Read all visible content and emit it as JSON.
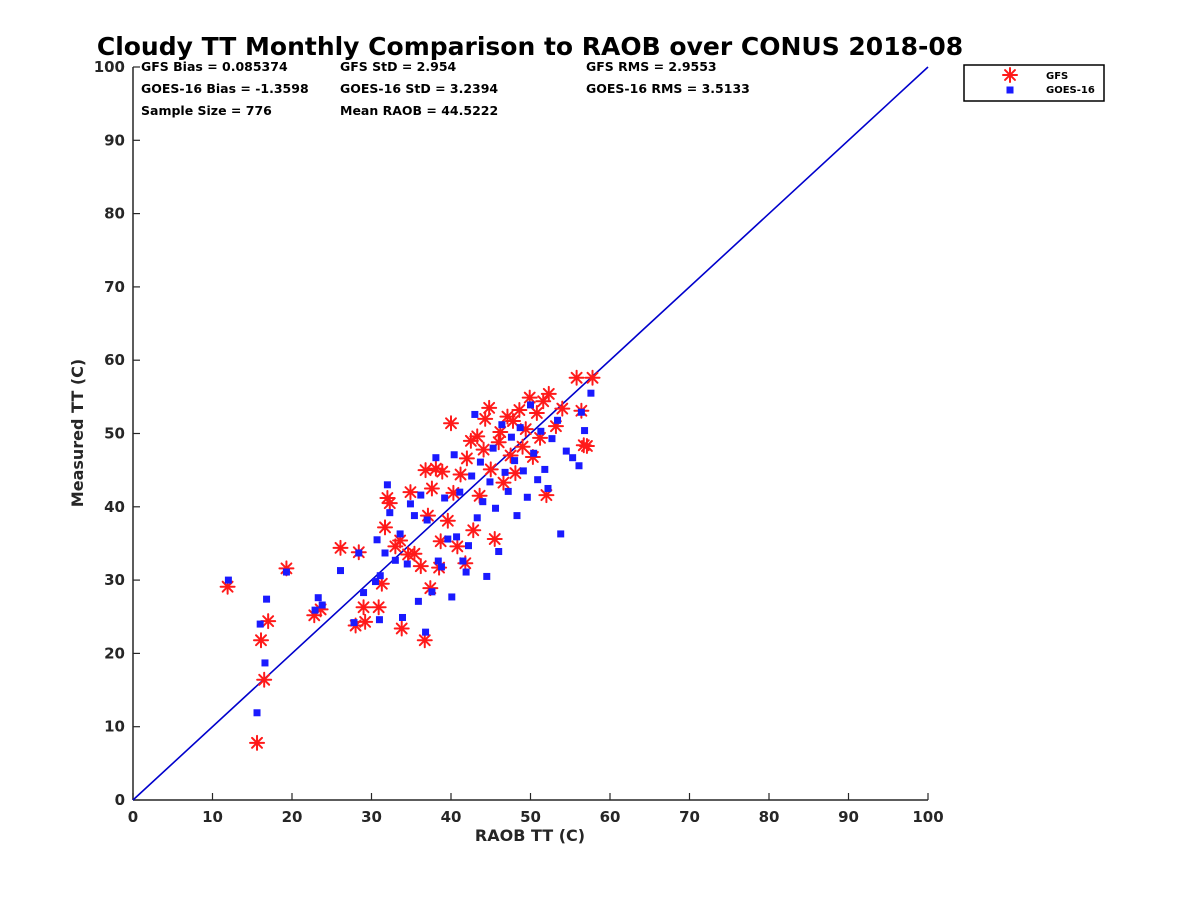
{
  "chart_data": {
    "type": "scatter",
    "title": "Cloudy TT Monthly Comparison to RAOB over CONUS 2018-08",
    "xlabel": "RAOB TT (C)",
    "ylabel": "Measured TT (C)",
    "xlim": [
      0,
      100
    ],
    "ylim": [
      0,
      100
    ],
    "xticks": [
      "0",
      "10",
      "20",
      "30",
      "40",
      "50",
      "60",
      "70",
      "80",
      "90",
      "100"
    ],
    "yticks": [
      "0",
      "10",
      "20",
      "30",
      "40",
      "50",
      "60",
      "70",
      "80",
      "90",
      "100"
    ],
    "grid": false,
    "legend_position": "outside top-right",
    "stats": {
      "gfs_bias": "GFS Bias = 0.085374",
      "goes_bias": "GOES-16 Bias = -1.3598",
      "sample_size": "Sample Size = 776",
      "gfs_std": "GFS StD = 2.954",
      "goes_std": "GOES-16 StD = 3.2394",
      "mean_raob": "Mean RAOB = 44.5222",
      "gfs_rms": "GFS RMS = 2.9553",
      "goes_rms": "GOES-16 RMS = 3.5133"
    },
    "reference_line": {
      "x": [
        0,
        100
      ],
      "y": [
        0,
        100
      ],
      "color": "#0000cc"
    },
    "series": [
      {
        "name": "GFS",
        "marker": "asterisk",
        "color": "#ff1a1a",
        "points": [
          [
            11.9,
            29.1
          ],
          [
            15.6,
            7.8
          ],
          [
            16.1,
            21.8
          ],
          [
            16.5,
            16.4
          ],
          [
            17.0,
            24.4
          ],
          [
            19.3,
            31.6
          ],
          [
            22.8,
            25.2
          ],
          [
            23.6,
            26.0
          ],
          [
            26.1,
            34.4
          ],
          [
            28.0,
            23.8
          ],
          [
            28.4,
            33.8
          ],
          [
            29.0,
            26.3
          ],
          [
            29.2,
            24.3
          ],
          [
            30.9,
            26.3
          ],
          [
            31.3,
            29.5
          ],
          [
            31.7,
            37.2
          ],
          [
            32.0,
            41.2
          ],
          [
            32.3,
            40.5
          ],
          [
            33.0,
            34.6
          ],
          [
            33.6,
            35.4
          ],
          [
            33.8,
            23.4
          ],
          [
            34.6,
            33.5
          ],
          [
            34.9,
            42.0
          ],
          [
            35.4,
            33.6
          ],
          [
            36.2,
            31.9
          ],
          [
            36.7,
            21.8
          ],
          [
            36.8,
            45.0
          ],
          [
            37.1,
            38.8
          ],
          [
            37.4,
            28.9
          ],
          [
            37.6,
            42.5
          ],
          [
            38.1,
            45.2
          ],
          [
            38.5,
            31.7
          ],
          [
            38.7,
            35.3
          ],
          [
            38.9,
            44.8
          ],
          [
            39.6,
            38.1
          ],
          [
            40.0,
            51.4
          ],
          [
            40.3,
            41.9
          ],
          [
            40.8,
            34.6
          ],
          [
            41.2,
            44.4
          ],
          [
            41.8,
            32.3
          ],
          [
            42.0,
            46.6
          ],
          [
            42.5,
            49.0
          ],
          [
            42.8,
            36.8
          ],
          [
            43.3,
            49.6
          ],
          [
            43.6,
            41.5
          ],
          [
            44.1,
            47.8
          ],
          [
            44.3,
            52.0
          ],
          [
            44.8,
            53.5
          ],
          [
            45.0,
            45.1
          ],
          [
            45.5,
            35.6
          ],
          [
            46.0,
            48.8
          ],
          [
            46.2,
            50.2
          ],
          [
            46.6,
            43.3
          ],
          [
            47.1,
            52.3
          ],
          [
            47.5,
            47.0
          ],
          [
            47.8,
            51.7
          ],
          [
            48.1,
            44.6
          ],
          [
            48.6,
            53.2
          ],
          [
            49.0,
            48.2
          ],
          [
            49.4,
            50.6
          ],
          [
            49.9,
            54.9
          ],
          [
            50.3,
            46.8
          ],
          [
            50.8,
            52.8
          ],
          [
            51.2,
            49.4
          ],
          [
            51.6,
            54.4
          ],
          [
            52.0,
            41.6
          ],
          [
            52.3,
            55.4
          ],
          [
            53.2,
            51.0
          ],
          [
            54.0,
            53.4
          ],
          [
            55.8,
            57.6
          ],
          [
            56.4,
            53.1
          ],
          [
            56.7,
            48.4
          ],
          [
            57.8,
            57.6
          ],
          [
            57.1,
            48.3
          ]
        ]
      },
      {
        "name": "GOES-16",
        "marker": "square",
        "color": "#1a1aff",
        "points": [
          [
            12.0,
            30.0
          ],
          [
            15.6,
            11.9
          ],
          [
            16.0,
            24.0
          ],
          [
            16.6,
            18.7
          ],
          [
            16.8,
            27.4
          ],
          [
            19.3,
            31.1
          ],
          [
            22.9,
            25.9
          ],
          [
            23.3,
            27.6
          ],
          [
            23.8,
            26.6
          ],
          [
            26.1,
            31.3
          ],
          [
            27.8,
            24.2
          ],
          [
            28.4,
            33.7
          ],
          [
            29.0,
            28.3
          ],
          [
            30.5,
            29.8
          ],
          [
            30.7,
            35.5
          ],
          [
            31.0,
            24.6
          ],
          [
            31.1,
            30.6
          ],
          [
            31.7,
            33.7
          ],
          [
            32.0,
            43.0
          ],
          [
            32.3,
            39.2
          ],
          [
            33.0,
            32.7
          ],
          [
            33.6,
            36.3
          ],
          [
            33.9,
            24.9
          ],
          [
            34.5,
            32.2
          ],
          [
            34.9,
            40.4
          ],
          [
            35.4,
            38.8
          ],
          [
            35.9,
            27.1
          ],
          [
            36.2,
            41.6
          ],
          [
            36.8,
            22.9
          ],
          [
            37.0,
            38.2
          ],
          [
            37.6,
            28.4
          ],
          [
            38.1,
            46.7
          ],
          [
            38.4,
            32.6
          ],
          [
            38.8,
            31.8
          ],
          [
            39.2,
            41.2
          ],
          [
            39.6,
            35.6
          ],
          [
            40.1,
            27.7
          ],
          [
            40.4,
            47.1
          ],
          [
            40.7,
            35.9
          ],
          [
            41.1,
            42.0
          ],
          [
            41.5,
            32.6
          ],
          [
            41.9,
            31.1
          ],
          [
            42.2,
            34.7
          ],
          [
            42.6,
            44.2
          ],
          [
            43.0,
            52.6
          ],
          [
            43.3,
            38.5
          ],
          [
            43.7,
            46.1
          ],
          [
            44.0,
            40.7
          ],
          [
            44.5,
            30.5
          ],
          [
            44.9,
            43.4
          ],
          [
            45.3,
            48.0
          ],
          [
            45.6,
            39.8
          ],
          [
            46.0,
            33.9
          ],
          [
            46.4,
            51.2
          ],
          [
            46.8,
            44.7
          ],
          [
            47.2,
            42.1
          ],
          [
            47.6,
            49.5
          ],
          [
            48.0,
            46.3
          ],
          [
            48.3,
            38.8
          ],
          [
            48.7,
            50.8
          ],
          [
            49.1,
            44.9
          ],
          [
            49.6,
            41.3
          ],
          [
            50.0,
            53.9
          ],
          [
            50.4,
            47.3
          ],
          [
            50.9,
            43.7
          ],
          [
            51.3,
            50.3
          ],
          [
            51.8,
            45.1
          ],
          [
            52.2,
            42.5
          ],
          [
            52.7,
            49.3
          ],
          [
            53.4,
            51.8
          ],
          [
            53.8,
            36.3
          ],
          [
            54.5,
            47.6
          ],
          [
            55.3,
            46.7
          ],
          [
            56.1,
            45.6
          ],
          [
            56.4,
            52.9
          ],
          [
            56.8,
            50.4
          ],
          [
            57.6,
            55.5
          ]
        ]
      }
    ]
  }
}
